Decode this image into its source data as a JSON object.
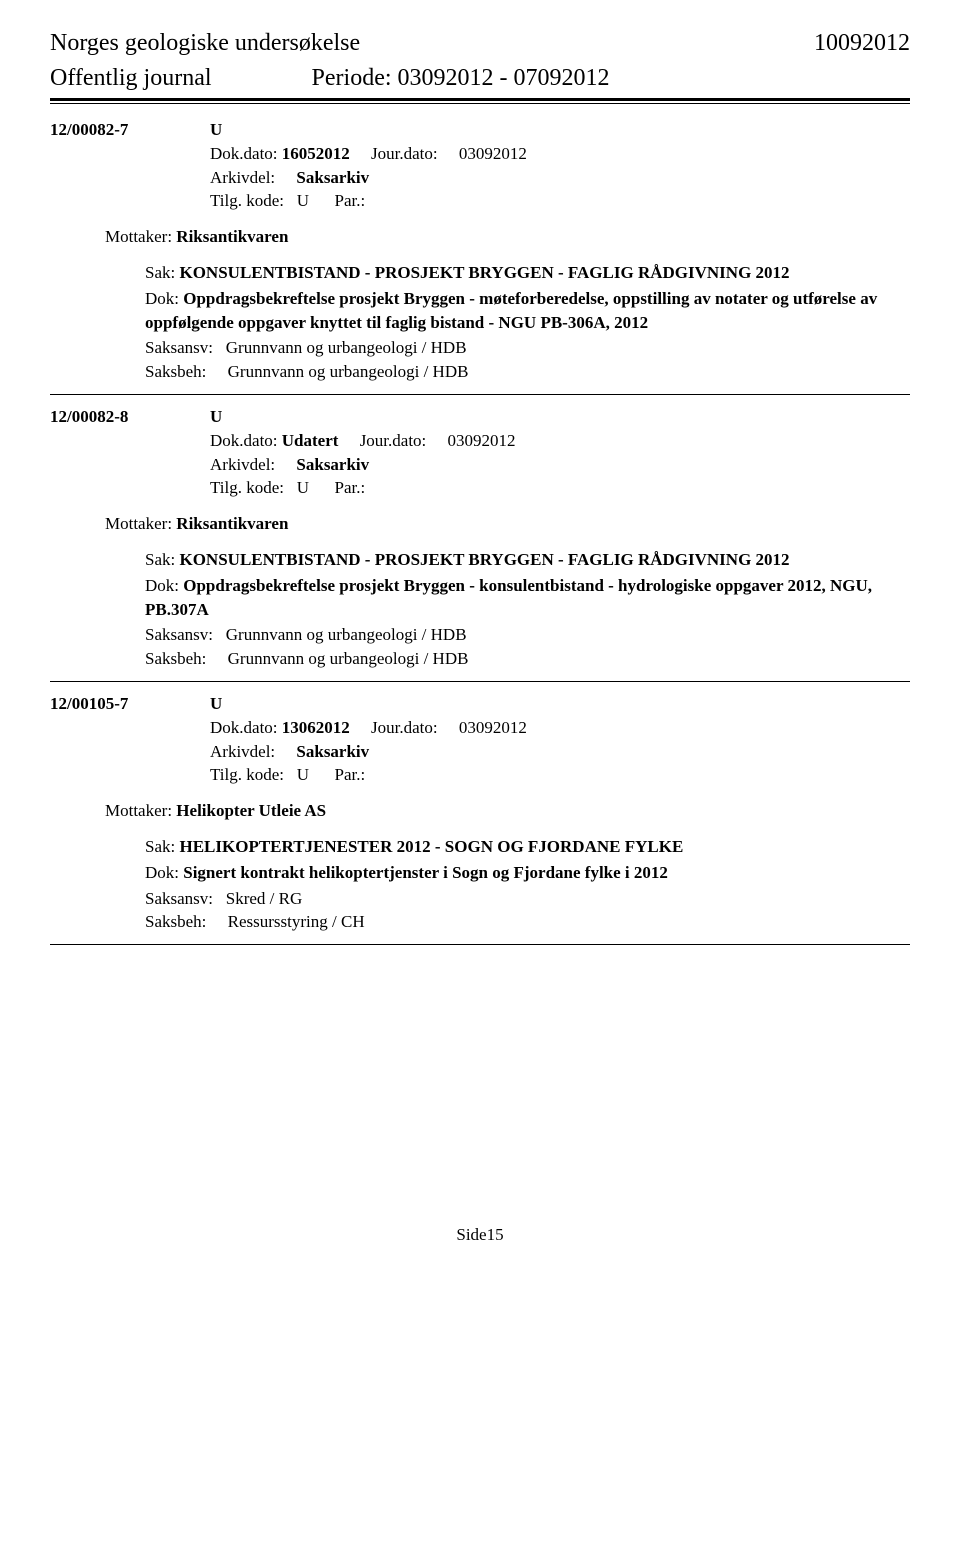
{
  "header": {
    "org": "Norges geologiske undersøkelse",
    "date": "10092012",
    "journal": "Offentlig journal",
    "periode_label": "Periode:",
    "periode_value": "03092012 - 07092012"
  },
  "entries": [
    {
      "case_id": "12/00082-7",
      "type": "U",
      "dok_dato_label": "Dok.dato:",
      "dok_dato": "16052012",
      "jour_dato_label": "Jour.dato:",
      "jour_dato": "03092012",
      "arkivdel_label": "Arkivdel:",
      "arkivdel": "Saksarkiv",
      "tilg_label": "Tilg. kode:",
      "tilg": "U",
      "par_label": "Par.:",
      "mottaker_label": "Mottaker:",
      "mottaker": "Riksantikvaren",
      "sak_label": "Sak:",
      "sak": "KONSULENTBISTAND - PROSJEKT BRYGGEN - FAGLIG RÅDGIVNING 2012",
      "dok_label": "Dok:",
      "dok": "Oppdragsbekreftelse prosjekt Bryggen - møteforberedelse, oppstilling av notater og utførelse av oppfølgende oppgaver knyttet til faglig bistand - NGU PB-306A, 2012",
      "saksansv_label": "Saksansv:",
      "saksansv": "Grunnvann og urbangeologi / HDB",
      "saksbeh_label": "Saksbeh:",
      "saksbeh": "Grunnvann og urbangeologi / HDB"
    },
    {
      "case_id": "12/00082-8",
      "type": "U",
      "dok_dato_label": "Dok.dato:",
      "dok_dato": "Udatert",
      "jour_dato_label": "Jour.dato:",
      "jour_dato": "03092012",
      "arkivdel_label": "Arkivdel:",
      "arkivdel": "Saksarkiv",
      "tilg_label": "Tilg. kode:",
      "tilg": "U",
      "par_label": "Par.:",
      "mottaker_label": "Mottaker:",
      "mottaker": "Riksantikvaren",
      "sak_label": "Sak:",
      "sak": "KONSULENTBISTAND - PROSJEKT BRYGGEN - FAGLIG RÅDGIVNING 2012",
      "dok_label": "Dok:",
      "dok": "Oppdragsbekreftelse prosjekt Bryggen - konsulentbistand - hydrologiske oppgaver 2012, NGU, PB.307A",
      "saksansv_label": "Saksansv:",
      "saksansv": "Grunnvann og urbangeologi / HDB",
      "saksbeh_label": "Saksbeh:",
      "saksbeh": "Grunnvann og urbangeologi / HDB"
    },
    {
      "case_id": "12/00105-7",
      "type": "U",
      "dok_dato_label": "Dok.dato:",
      "dok_dato": "13062012",
      "jour_dato_label": "Jour.dato:",
      "jour_dato": "03092012",
      "arkivdel_label": "Arkivdel:",
      "arkivdel": "Saksarkiv",
      "tilg_label": "Tilg. kode:",
      "tilg": "U",
      "par_label": "Par.:",
      "mottaker_label": "Mottaker:",
      "mottaker": "Helikopter Utleie AS",
      "sak_label": "Sak:",
      "sak": "HELIKOPTERTJENESTER 2012 - SOGN OG FJORDANE FYLKE",
      "dok_label": "Dok:",
      "dok": "Signert kontrakt helikoptertjenster i  Sogn og Fjordane fylke i 2012",
      "saksansv_label": "Saksansv:",
      "saksansv": "Skred / RG",
      "saksbeh_label": "Saksbeh:",
      "saksbeh": "Ressursstyring / CH"
    }
  ],
  "footer": {
    "page": "Side15"
  }
}
